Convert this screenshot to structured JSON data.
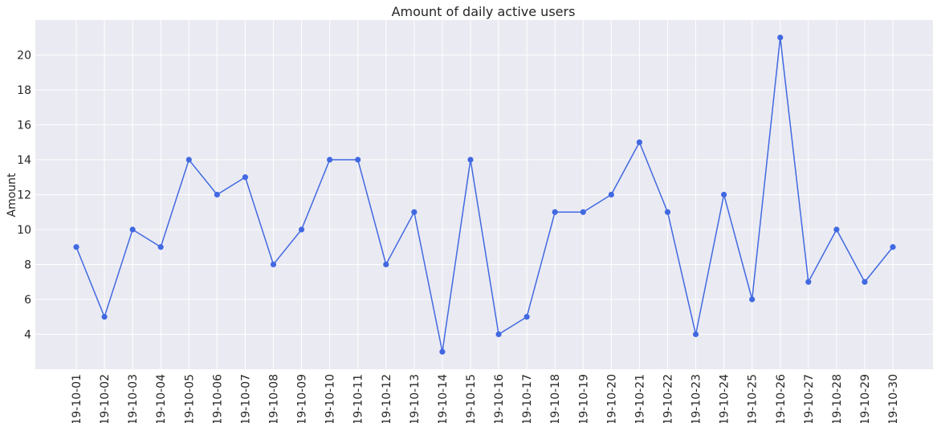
{
  "chart_data": {
    "type": "line",
    "title": "Amount of daily active users",
    "xlabel": "",
    "ylabel": "Amount",
    "categories": [
      "19-10-01",
      "19-10-02",
      "19-10-03",
      "19-10-04",
      "19-10-05",
      "19-10-06",
      "19-10-07",
      "19-10-08",
      "19-10-09",
      "19-10-10",
      "19-10-11",
      "19-10-12",
      "19-10-13",
      "19-10-14",
      "19-10-15",
      "19-10-16",
      "19-10-17",
      "19-10-18",
      "19-10-19",
      "19-10-20",
      "19-10-21",
      "19-10-22",
      "19-10-23",
      "19-10-24",
      "19-10-25",
      "19-10-26",
      "19-10-27",
      "19-10-28",
      "19-10-29",
      "19-10-30"
    ],
    "values": [
      9,
      5,
      10,
      9,
      14,
      12,
      13,
      8,
      10,
      14,
      14,
      8,
      11,
      3,
      14,
      4,
      5,
      11,
      11,
      12,
      15,
      11,
      4,
      12,
      6,
      21,
      7,
      10,
      7,
      9
    ],
    "ylim": [
      2,
      22
    ],
    "yticks": [
      4,
      6,
      8,
      10,
      12,
      14,
      16,
      18,
      20
    ],
    "grid": true,
    "colors": {
      "line": "#4169e1",
      "background": "#eaeaf2",
      "grid": "#ffffff"
    }
  }
}
